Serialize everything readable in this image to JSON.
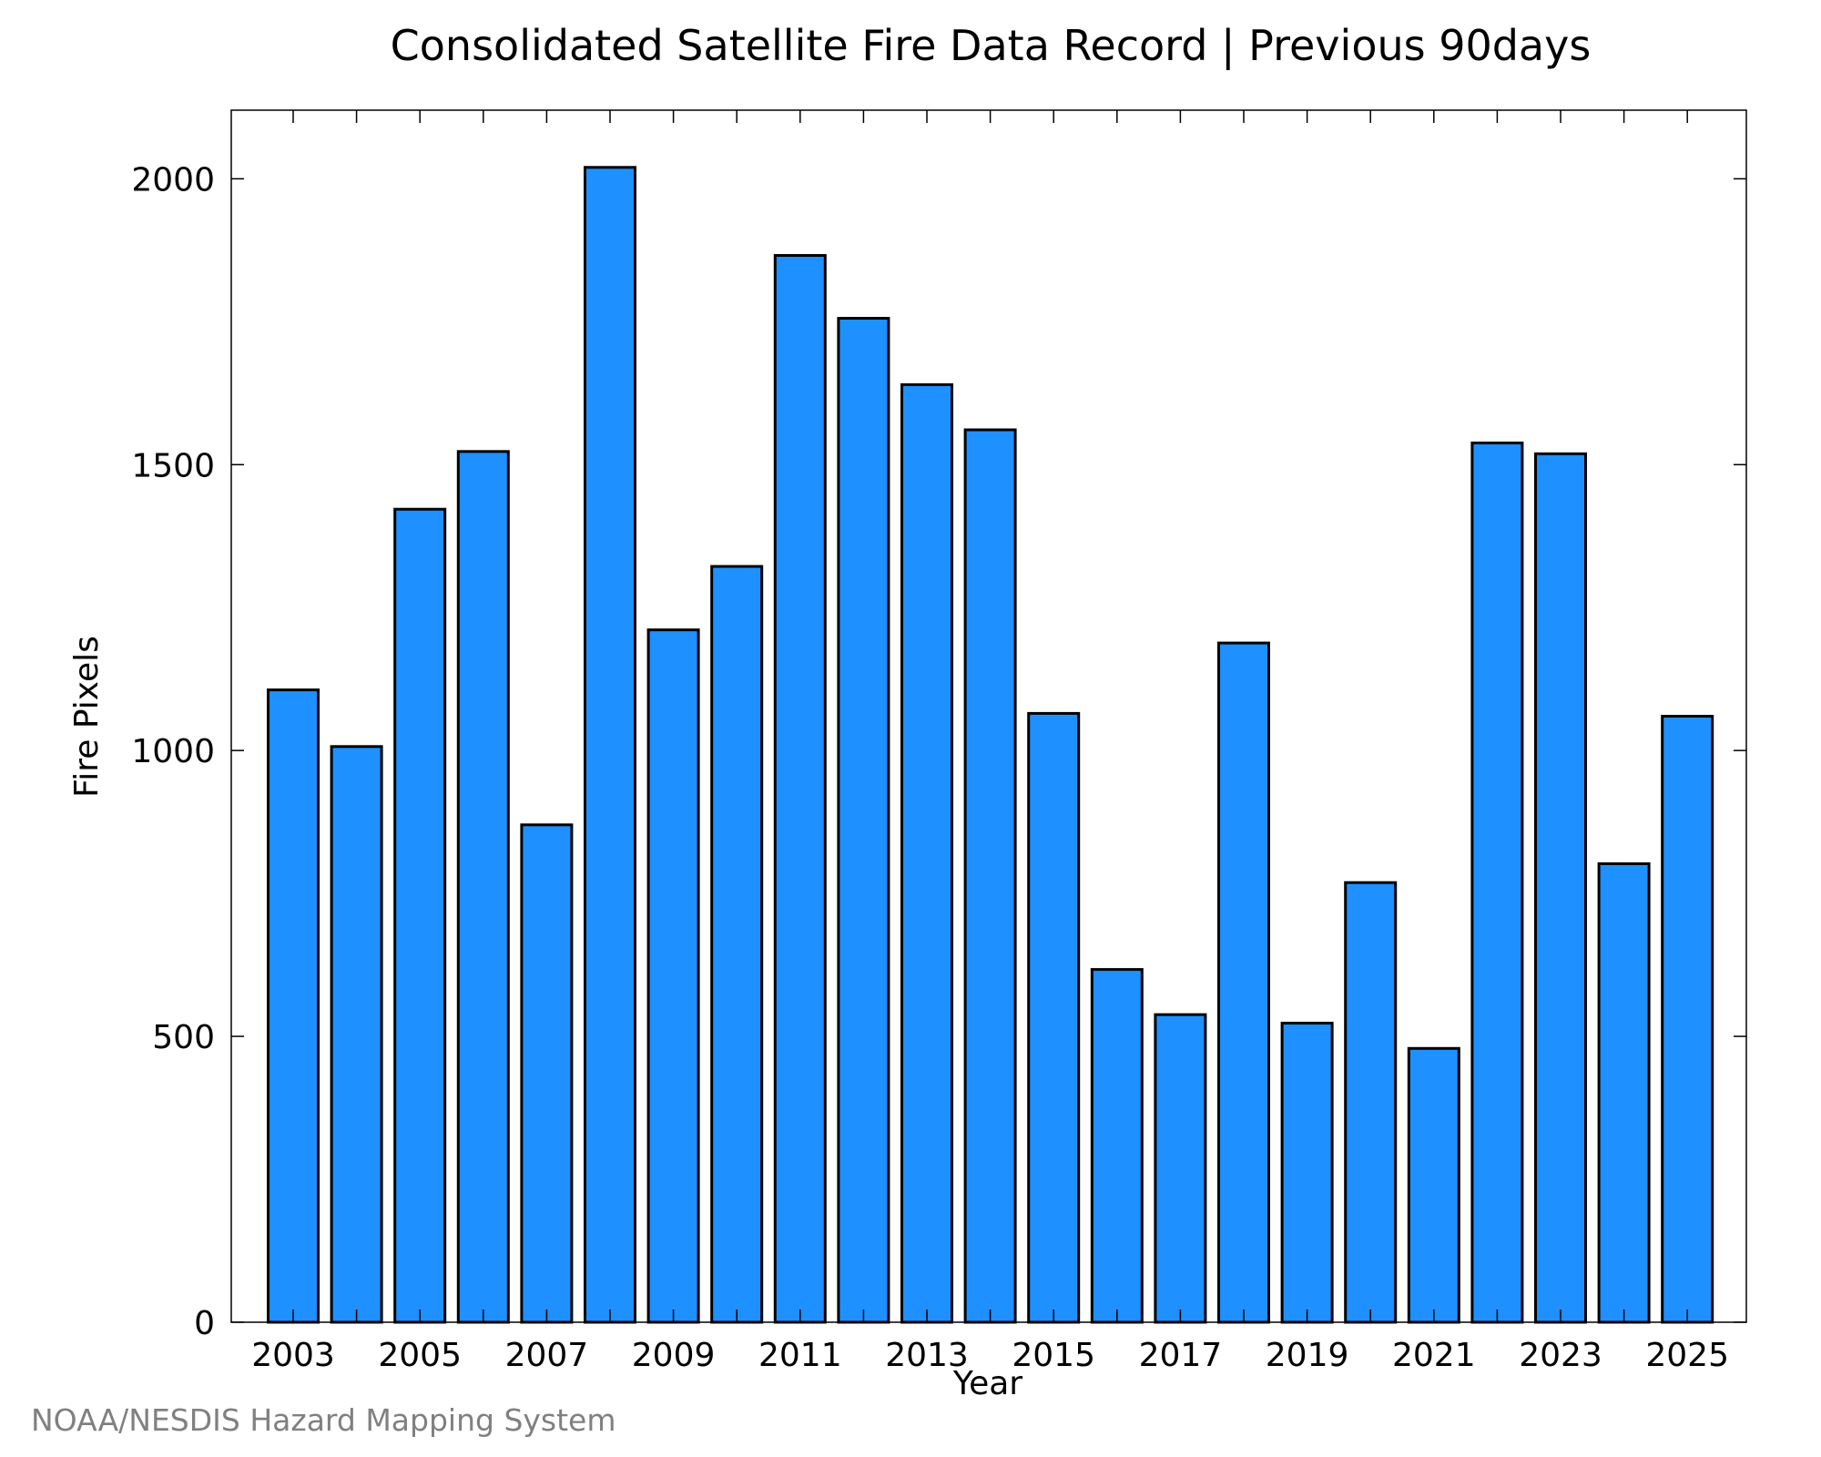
{
  "chart_data": {
    "type": "bar",
    "title": "Consolidated Satellite Fire Data Record | Previous 90days",
    "xlabel": "Year",
    "ylabel": "Fire Pixels",
    "categories": [
      "2003",
      "2004",
      "2005",
      "2006",
      "2007",
      "2008",
      "2009",
      "2010",
      "2011",
      "2012",
      "2013",
      "2014",
      "2015",
      "2016",
      "2017",
      "2018",
      "2019",
      "2020",
      "2021",
      "2022",
      "2023",
      "2024",
      "2025"
    ],
    "values": [
      1106,
      1007,
      1422,
      1523,
      870,
      2020,
      1211,
      1322,
      1866,
      1756,
      1640,
      1561,
      1065,
      617,
      538,
      1188,
      523,
      769,
      479,
      1538,
      1519,
      802,
      1060
    ],
    "x_tick_labels": [
      "2003",
      "2005",
      "2007",
      "2009",
      "2011",
      "2013",
      "2015",
      "2017",
      "2019",
      "2021",
      "2023",
      "2025"
    ],
    "y_ticks": [
      0,
      500,
      1000,
      1500,
      2000
    ],
    "ylim": [
      0,
      2120
    ],
    "grid": false,
    "bar_color": "#1e90ff",
    "bar_edge_color": "#000000"
  },
  "footer": {
    "credit": "NOAA/NESDIS Hazard Mapping System"
  }
}
